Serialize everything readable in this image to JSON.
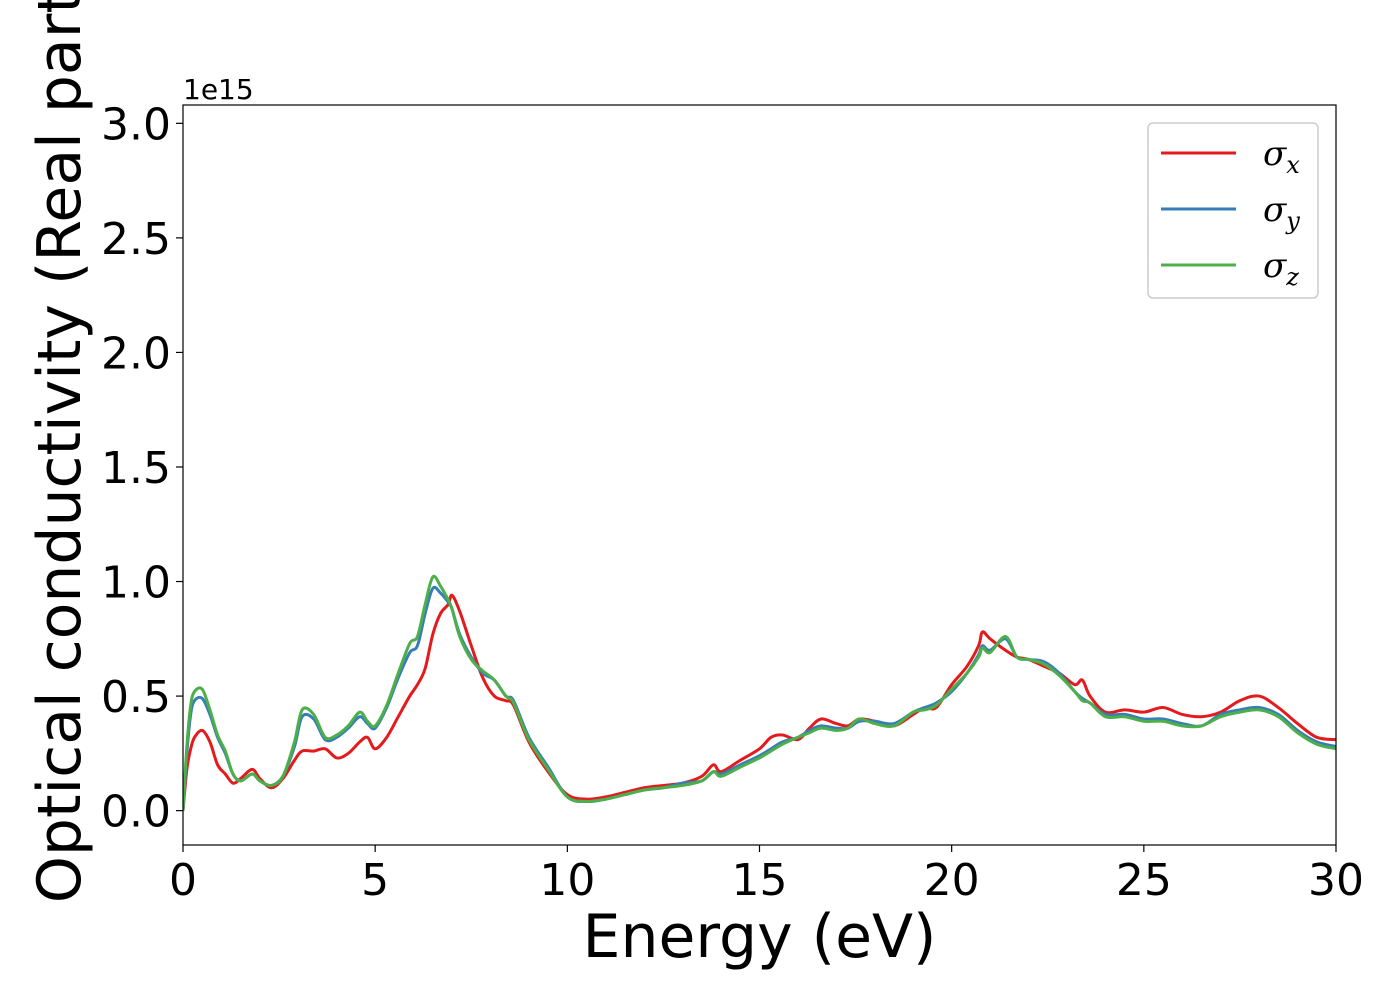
{
  "chart_data": {
    "type": "line",
    "title": "",
    "xlabel": "Energy (eV)",
    "ylabel": "Optical conductivity (Real part)",
    "y_offset_label": "1e15",
    "xlim": [
      0,
      30
    ],
    "ylim": [
      -0.15,
      3.08
    ],
    "y_scale_factor": 1000000000000000.0,
    "grid": false,
    "legend_position": "top-right",
    "x_ticks": [
      0,
      5,
      10,
      15,
      20,
      25,
      30
    ],
    "y_ticks": [
      0.0,
      0.5,
      1.0,
      1.5,
      2.0,
      2.5,
      3.0
    ],
    "x_tick_labels": [
      "0",
      "5",
      "10",
      "15",
      "20",
      "25",
      "30"
    ],
    "y_tick_labels": [
      "0.0",
      "0.5",
      "1.0",
      "1.5",
      "2.0",
      "2.5",
      "3.0"
    ],
    "series": [
      {
        "name": "σx",
        "legend_main": "σ",
        "legend_sub": "x",
        "color": "#e41a1c",
        "x": [
          0,
          0.1,
          0.2,
          0.3,
          0.5,
          0.7,
          0.9,
          1.1,
          1.3,
          1.5,
          1.8,
          2.0,
          2.3,
          2.6,
          2.9,
          3.1,
          3.4,
          3.7,
          4.0,
          4.3,
          4.6,
          4.8,
          5.0,
          5.3,
          5.6,
          5.9,
          6.1,
          6.3,
          6.5,
          6.7,
          6.9,
          7.0,
          7.2,
          7.5,
          7.8,
          8.1,
          8.4,
          8.6,
          9.0,
          9.5,
          10.0,
          10.5,
          11.0,
          11.5,
          12.0,
          12.5,
          13.0,
          13.5,
          13.8,
          14.0,
          14.5,
          15.0,
          15.3,
          15.6,
          16.0,
          16.3,
          16.6,
          17.0,
          17.3,
          17.6,
          18.0,
          18.5,
          19.0,
          19.3,
          19.6,
          20.0,
          20.4,
          20.7,
          20.8,
          21.0,
          21.4,
          21.7,
          22.0,
          22.4,
          22.8,
          23.2,
          23.4,
          23.6,
          24.0,
          24.5,
          25.0,
          25.5,
          26.0,
          26.5,
          27.0,
          27.5,
          28.0,
          28.5,
          29.0,
          29.5,
          30.0
        ],
        "y": [
          0.0,
          0.18,
          0.27,
          0.32,
          0.35,
          0.3,
          0.2,
          0.16,
          0.12,
          0.14,
          0.18,
          0.14,
          0.1,
          0.14,
          0.22,
          0.26,
          0.26,
          0.27,
          0.23,
          0.25,
          0.3,
          0.32,
          0.27,
          0.32,
          0.41,
          0.5,
          0.55,
          0.62,
          0.77,
          0.86,
          0.9,
          0.94,
          0.87,
          0.72,
          0.58,
          0.5,
          0.48,
          0.46,
          0.3,
          0.17,
          0.07,
          0.05,
          0.06,
          0.08,
          0.1,
          0.11,
          0.12,
          0.15,
          0.2,
          0.17,
          0.22,
          0.27,
          0.32,
          0.33,
          0.31,
          0.36,
          0.4,
          0.38,
          0.37,
          0.4,
          0.39,
          0.37,
          0.42,
          0.45,
          0.45,
          0.55,
          0.63,
          0.72,
          0.78,
          0.75,
          0.7,
          0.67,
          0.66,
          0.63,
          0.6,
          0.55,
          0.57,
          0.5,
          0.43,
          0.44,
          0.43,
          0.45,
          0.42,
          0.41,
          0.43,
          0.48,
          0.5,
          0.45,
          0.38,
          0.32,
          0.31
        ]
      },
      {
        "name": "σy",
        "legend_main": "σ",
        "legend_sub": "y",
        "color": "#377eb8",
        "x": [
          0,
          0.1,
          0.2,
          0.3,
          0.5,
          0.7,
          0.9,
          1.1,
          1.3,
          1.5,
          1.8,
          2.0,
          2.3,
          2.6,
          2.9,
          3.1,
          3.4,
          3.7,
          4.0,
          4.3,
          4.6,
          4.8,
          5.0,
          5.3,
          5.6,
          5.9,
          6.1,
          6.3,
          6.5,
          6.7,
          6.9,
          7.0,
          7.2,
          7.5,
          7.8,
          8.1,
          8.4,
          8.6,
          9.0,
          9.5,
          10.0,
          10.5,
          11.0,
          11.5,
          12.0,
          12.5,
          13.0,
          13.5,
          13.8,
          14.0,
          14.5,
          15.0,
          15.3,
          15.6,
          16.0,
          16.3,
          16.6,
          17.0,
          17.3,
          17.6,
          18.0,
          18.5,
          19.0,
          19.3,
          19.6,
          20.0,
          20.4,
          20.7,
          20.8,
          21.0,
          21.4,
          21.7,
          22.0,
          22.4,
          22.8,
          23.2,
          23.4,
          23.6,
          24.0,
          24.5,
          25.0,
          25.5,
          26.0,
          26.5,
          27.0,
          27.5,
          28.0,
          28.5,
          29.0,
          29.5,
          30.0
        ],
        "y": [
          0.0,
          0.25,
          0.42,
          0.48,
          0.49,
          0.42,
          0.32,
          0.25,
          0.16,
          0.13,
          0.16,
          0.13,
          0.11,
          0.15,
          0.28,
          0.41,
          0.4,
          0.31,
          0.32,
          0.36,
          0.41,
          0.38,
          0.36,
          0.45,
          0.58,
          0.69,
          0.72,
          0.86,
          0.97,
          0.95,
          0.91,
          0.88,
          0.77,
          0.67,
          0.6,
          0.57,
          0.5,
          0.48,
          0.32,
          0.19,
          0.06,
          0.04,
          0.05,
          0.07,
          0.09,
          0.1,
          0.12,
          0.13,
          0.17,
          0.16,
          0.2,
          0.24,
          0.27,
          0.3,
          0.32,
          0.35,
          0.37,
          0.36,
          0.36,
          0.39,
          0.39,
          0.38,
          0.43,
          0.45,
          0.47,
          0.52,
          0.6,
          0.68,
          0.72,
          0.7,
          0.75,
          0.67,
          0.66,
          0.65,
          0.6,
          0.52,
          0.49,
          0.47,
          0.42,
          0.42,
          0.4,
          0.4,
          0.38,
          0.37,
          0.42,
          0.44,
          0.45,
          0.42,
          0.35,
          0.3,
          0.28
        ]
      },
      {
        "name": "σz",
        "legend_main": "σ",
        "legend_sub": "z",
        "color": "#4daf4a",
        "x": [
          0,
          0.1,
          0.2,
          0.3,
          0.5,
          0.7,
          0.9,
          1.1,
          1.3,
          1.5,
          1.8,
          2.0,
          2.3,
          2.6,
          2.9,
          3.1,
          3.4,
          3.7,
          4.0,
          4.3,
          4.6,
          4.8,
          5.0,
          5.3,
          5.6,
          5.9,
          6.1,
          6.3,
          6.5,
          6.7,
          6.9,
          7.0,
          7.2,
          7.5,
          7.8,
          8.1,
          8.4,
          8.6,
          9.0,
          9.5,
          10.0,
          10.5,
          11.0,
          11.5,
          12.0,
          12.5,
          13.0,
          13.5,
          13.8,
          14.0,
          14.5,
          15.0,
          15.3,
          15.6,
          16.0,
          16.3,
          16.6,
          17.0,
          17.3,
          17.6,
          18.0,
          18.5,
          19.0,
          19.3,
          19.6,
          20.0,
          20.4,
          20.7,
          20.8,
          21.0,
          21.4,
          21.7,
          22.0,
          22.4,
          22.8,
          23.2,
          23.4,
          23.6,
          24.0,
          24.5,
          25.0,
          25.5,
          26.0,
          26.5,
          27.0,
          27.5,
          28.0,
          28.5,
          29.0,
          29.5,
          30.0
        ],
        "y": [
          0.0,
          0.28,
          0.46,
          0.52,
          0.53,
          0.44,
          0.33,
          0.26,
          0.16,
          0.13,
          0.16,
          0.13,
          0.11,
          0.15,
          0.3,
          0.44,
          0.42,
          0.32,
          0.33,
          0.37,
          0.43,
          0.39,
          0.37,
          0.46,
          0.6,
          0.73,
          0.76,
          0.9,
          1.02,
          0.98,
          0.92,
          0.88,
          0.76,
          0.66,
          0.61,
          0.57,
          0.5,
          0.47,
          0.31,
          0.18,
          0.06,
          0.04,
          0.05,
          0.07,
          0.09,
          0.1,
          0.11,
          0.13,
          0.17,
          0.15,
          0.19,
          0.23,
          0.26,
          0.29,
          0.32,
          0.34,
          0.36,
          0.35,
          0.36,
          0.4,
          0.38,
          0.37,
          0.43,
          0.44,
          0.46,
          0.53,
          0.6,
          0.67,
          0.71,
          0.69,
          0.76,
          0.67,
          0.66,
          0.64,
          0.59,
          0.52,
          0.48,
          0.47,
          0.41,
          0.41,
          0.39,
          0.39,
          0.37,
          0.37,
          0.41,
          0.43,
          0.44,
          0.41,
          0.34,
          0.29,
          0.27
        ]
      }
    ]
  }
}
